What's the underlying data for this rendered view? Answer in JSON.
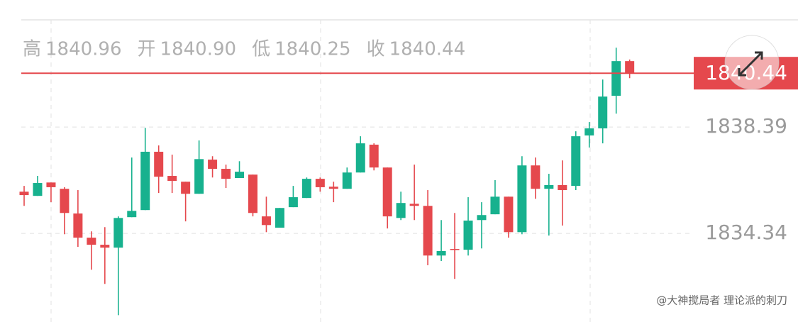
{
  "chart_data": {
    "type": "candlestick",
    "summary": [
      {
        "label": "高",
        "value": "1840.96"
      },
      {
        "label": "开",
        "value": "1840.90"
      },
      {
        "label": "低",
        "value": "1840.25"
      },
      {
        "label": "收",
        "value": "1840.44"
      }
    ],
    "open": [
      1835.93,
      1835.77,
      1836.28,
      1836.04,
      1835.1,
      1834.18,
      1833.91,
      1833.8,
      1834.96,
      1835.23,
      1837.45,
      1836.53,
      1836.31,
      1835.85,
      1837.15,
      1836.8,
      1836.45,
      1836.58,
      1834.99,
      1834.56,
      1835.34,
      1835.69,
      1836.42,
      1836.12,
      1836.04,
      1836.66,
      1837.72,
      1836.85,
      1834.93,
      1835.47,
      1835.39,
      1833.5,
      1833.75,
      1833.72,
      1834.85,
      1835.07,
      1835.74,
      1834.39,
      1836.93,
      1836.04,
      1836.18,
      1836.15,
      1838.07,
      1838.34,
      1839.58,
      1840.9
    ],
    "high": [
      1836.15,
      1836.53,
      1836.28,
      1836.1,
      1835.99,
      1834.42,
      1834.58,
      1834.99,
      1837.23,
      1838.36,
      1837.69,
      1837.34,
      1836.31,
      1837.88,
      1837.28,
      1836.96,
      1837.09,
      1836.58,
      1835.74,
      1835.31,
      1836.15,
      1836.47,
      1836.47,
      1836.31,
      1836.85,
      1838.04,
      1837.77,
      1836.85,
      1835.93,
      1836.96,
      1835.99,
      1834.85,
      1835.12,
      1835.72,
      1835.53,
      1836.37,
      1835.74,
      1837.28,
      1837.23,
      1836.61,
      1837.12,
      1838.23,
      1838.58,
      1840.2,
      1841.41,
      1840.96
    ],
    "low": [
      1835.39,
      1835.77,
      1835.53,
      1834.31,
      1833.83,
      1832.96,
      1832.42,
      1831.23,
      1834.96,
      1835.23,
      1835.88,
      1835.88,
      1834.8,
      1835.85,
      1836.47,
      1836.07,
      1836.45,
      1834.99,
      1834.39,
      1834.56,
      1835.34,
      1835.69,
      1835.93,
      1835.53,
      1836.04,
      1836.66,
      1836.74,
      1834.53,
      1834.85,
      1834.85,
      1833.13,
      1833.29,
      1832.61,
      1833.5,
      1833.77,
      1835.07,
      1834.18,
      1834.31,
      1835.66,
      1834.26,
      1834.64,
      1835.99,
      1837.61,
      1837.77,
      1838.9,
      1840.25
    ],
    "close": [
      1835.8,
      1836.26,
      1836.1,
      1835.12,
      1834.18,
      1833.91,
      1833.8,
      1834.93,
      1835.2,
      1837.45,
      1836.5,
      1836.34,
      1835.85,
      1837.17,
      1836.8,
      1836.42,
      1836.69,
      1835.12,
      1834.66,
      1835.31,
      1835.72,
      1836.42,
      1836.1,
      1836.04,
      1836.66,
      1837.77,
      1836.85,
      1834.99,
      1835.5,
      1835.39,
      1833.5,
      1833.67,
      1833.72,
      1834.83,
      1835.04,
      1835.74,
      1834.39,
      1836.93,
      1836.04,
      1836.18,
      1835.99,
      1838.04,
      1838.34,
      1839.55,
      1840.9,
      1840.44
    ],
    "up_color": "#17b18e",
    "down_color": "#e5484d",
    "last_price": 1840.44,
    "ylim": [
      1830.97,
      1842.47
    ],
    "yticks": [
      1838.39,
      1834.34
    ],
    "grid": true,
    "watermark": "@大神搅局者 理论派的刺刀"
  }
}
